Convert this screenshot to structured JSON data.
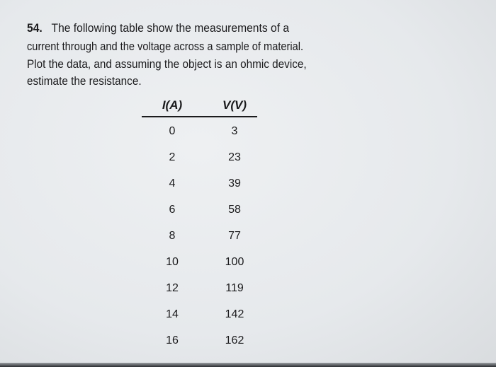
{
  "problem": {
    "number": "54.",
    "lines": [
      "The following table show the measurements of a",
      "current through and the voltage across a sample of material.",
      "Plot the data, and assuming the object is an ohmic device,",
      "estimate the resistance."
    ]
  },
  "table": {
    "headers": [
      "I(A)",
      "V(V)"
    ],
    "rows": [
      [
        "0",
        "3"
      ],
      [
        "2",
        "23"
      ],
      [
        "4",
        "39"
      ],
      [
        "6",
        "58"
      ],
      [
        "8",
        "77"
      ],
      [
        "10",
        "100"
      ],
      [
        "12",
        "119"
      ],
      [
        "14",
        "142"
      ],
      [
        "16",
        "162"
      ]
    ]
  }
}
